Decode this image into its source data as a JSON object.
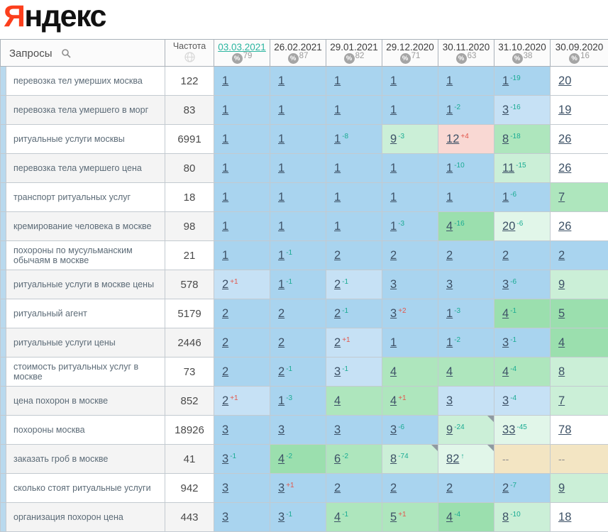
{
  "logo": {
    "red": "Я",
    "rest": "ндекс"
  },
  "colors": {
    "yandex_red": "#fc3f1d",
    "active_date_teal": "#2bb5a0",
    "change_up_teal": "#1aab93",
    "change_down_red": "#e2574c",
    "left_strip_blue": "#b9d9ee",
    "cell_palette": {
      "b": "#a9d4ef",
      "bl": "#c6e1f5",
      "g1": "#9bdfae",
      "g2": "#aee6bd",
      "g3": "#cbefd7",
      "g4": "#e1f6e9",
      "pk": "#f9d8d3",
      "tn": "#f3e5c3",
      "w": "#ffffff"
    }
  },
  "table": {
    "queries_header": "Запросы",
    "frequency_header": "Частота",
    "dates": [
      {
        "label": "03.03.2021",
        "coverage": "79",
        "active": true
      },
      {
        "label": "26.02.2021",
        "coverage": "87",
        "active": false
      },
      {
        "label": "29.01.2021",
        "coverage": "82",
        "active": false
      },
      {
        "label": "29.12.2020",
        "coverage": "71",
        "active": false
      },
      {
        "label": "30.11.2020",
        "coverage": "63",
        "active": false
      },
      {
        "label": "31.10.2020",
        "coverage": "38",
        "active": false
      },
      {
        "label": "30.09.2020",
        "coverage": "16",
        "active": false
      }
    ],
    "rows": [
      {
        "query": "перевозка тел умерших москва",
        "frequency": "122",
        "cells": [
          {
            "v": "1",
            "c": "",
            "bg": "b"
          },
          {
            "v": "1",
            "c": "",
            "bg": "b"
          },
          {
            "v": "1",
            "c": "",
            "bg": "b"
          },
          {
            "v": "1",
            "c": "",
            "bg": "b"
          },
          {
            "v": "1",
            "c": "",
            "bg": "b"
          },
          {
            "v": "1",
            "c": "-19",
            "bg": "b"
          },
          {
            "v": "20",
            "c": "",
            "bg": "w"
          }
        ]
      },
      {
        "query": "перевозка тела умершего в морг",
        "frequency": "83",
        "cells": [
          {
            "v": "1",
            "c": "",
            "bg": "b"
          },
          {
            "v": "1",
            "c": "",
            "bg": "b"
          },
          {
            "v": "1",
            "c": "",
            "bg": "b"
          },
          {
            "v": "1",
            "c": "",
            "bg": "b"
          },
          {
            "v": "1",
            "c": "-2",
            "bg": "b"
          },
          {
            "v": "3",
            "c": "-16",
            "bg": "bl"
          },
          {
            "v": "19",
            "c": "",
            "bg": "w"
          }
        ]
      },
      {
        "query": "ритуальные услуги москвы",
        "frequency": "6991",
        "cells": [
          {
            "v": "1",
            "c": "",
            "bg": "b"
          },
          {
            "v": "1",
            "c": "",
            "bg": "b"
          },
          {
            "v": "1",
            "c": "-8",
            "bg": "b"
          },
          {
            "v": "9",
            "c": "-3",
            "bg": "g3"
          },
          {
            "v": "12",
            "c": "+4",
            "bg": "pk"
          },
          {
            "v": "8",
            "c": "-18",
            "bg": "g2"
          },
          {
            "v": "26",
            "c": "",
            "bg": "w"
          }
        ]
      },
      {
        "query": "перевозка тела умершего цена",
        "frequency": "80",
        "cells": [
          {
            "v": "1",
            "c": "",
            "bg": "b"
          },
          {
            "v": "1",
            "c": "",
            "bg": "b"
          },
          {
            "v": "1",
            "c": "",
            "bg": "b"
          },
          {
            "v": "1",
            "c": "",
            "bg": "b"
          },
          {
            "v": "1",
            "c": "-10",
            "bg": "b"
          },
          {
            "v": "11",
            "c": "-15",
            "bg": "g3"
          },
          {
            "v": "26",
            "c": "",
            "bg": "w"
          }
        ]
      },
      {
        "query": "транспорт ритуальных услуг",
        "frequency": "18",
        "cells": [
          {
            "v": "1",
            "c": "",
            "bg": "b"
          },
          {
            "v": "1",
            "c": "",
            "bg": "b"
          },
          {
            "v": "1",
            "c": "",
            "bg": "b"
          },
          {
            "v": "1",
            "c": "",
            "bg": "b"
          },
          {
            "v": "1",
            "c": "",
            "bg": "b"
          },
          {
            "v": "1",
            "c": "-6",
            "bg": "b"
          },
          {
            "v": "7",
            "c": "",
            "bg": "g2"
          }
        ]
      },
      {
        "query": "кремирование человека в москве",
        "frequency": "98",
        "cells": [
          {
            "v": "1",
            "c": "",
            "bg": "b"
          },
          {
            "v": "1",
            "c": "",
            "bg": "b"
          },
          {
            "v": "1",
            "c": "",
            "bg": "b"
          },
          {
            "v": "1",
            "c": "-3",
            "bg": "b"
          },
          {
            "v": "4",
            "c": "-16",
            "bg": "g1"
          },
          {
            "v": "20",
            "c": "-6",
            "bg": "g4"
          },
          {
            "v": "26",
            "c": "",
            "bg": "w"
          }
        ]
      },
      {
        "query": "похороны по мусульманским обычаям в москве",
        "frequency": "21",
        "cells": [
          {
            "v": "1",
            "c": "",
            "bg": "b"
          },
          {
            "v": "1",
            "c": "-1",
            "bg": "b"
          },
          {
            "v": "2",
            "c": "",
            "bg": "b"
          },
          {
            "v": "2",
            "c": "",
            "bg": "b"
          },
          {
            "v": "2",
            "c": "",
            "bg": "b"
          },
          {
            "v": "2",
            "c": "",
            "bg": "b"
          },
          {
            "v": "2",
            "c": "",
            "bg": "b"
          }
        ]
      },
      {
        "query": "ритуальные услуги в москве цены",
        "frequency": "578",
        "cells": [
          {
            "v": "2",
            "c": "+1",
            "bg": "bl"
          },
          {
            "v": "1",
            "c": "-1",
            "bg": "b"
          },
          {
            "v": "2",
            "c": "-1",
            "bg": "bl"
          },
          {
            "v": "3",
            "c": "",
            "bg": "b"
          },
          {
            "v": "3",
            "c": "",
            "bg": "b"
          },
          {
            "v": "3",
            "c": "-6",
            "bg": "b"
          },
          {
            "v": "9",
            "c": "",
            "bg": "g3"
          }
        ]
      },
      {
        "query": "ритуальный агент",
        "frequency": "5179",
        "cells": [
          {
            "v": "2",
            "c": "",
            "bg": "b"
          },
          {
            "v": "2",
            "c": "",
            "bg": "b"
          },
          {
            "v": "2",
            "c": "-1",
            "bg": "b"
          },
          {
            "v": "3",
            "c": "+2",
            "bg": "b"
          },
          {
            "v": "1",
            "c": "-3",
            "bg": "b"
          },
          {
            "v": "4",
            "c": "-1",
            "bg": "g1"
          },
          {
            "v": "5",
            "c": "",
            "bg": "g1"
          }
        ]
      },
      {
        "query": "ритуальные услуги цены",
        "frequency": "2446",
        "cells": [
          {
            "v": "2",
            "c": "",
            "bg": "b"
          },
          {
            "v": "2",
            "c": "",
            "bg": "b"
          },
          {
            "v": "2",
            "c": "+1",
            "bg": "bl"
          },
          {
            "v": "1",
            "c": "",
            "bg": "b"
          },
          {
            "v": "1",
            "c": "-2",
            "bg": "b"
          },
          {
            "v": "3",
            "c": "-1",
            "bg": "b"
          },
          {
            "v": "4",
            "c": "",
            "bg": "g1"
          }
        ]
      },
      {
        "query": "стоимость ритуальных услуг в москве",
        "frequency": "73",
        "cells": [
          {
            "v": "2",
            "c": "",
            "bg": "b"
          },
          {
            "v": "2",
            "c": "-1",
            "bg": "b"
          },
          {
            "v": "3",
            "c": "-1",
            "bg": "bl"
          },
          {
            "v": "4",
            "c": "",
            "bg": "g2"
          },
          {
            "v": "4",
            "c": "",
            "bg": "g2"
          },
          {
            "v": "4",
            "c": "-4",
            "bg": "g2"
          },
          {
            "v": "8",
            "c": "",
            "bg": "g3"
          }
        ]
      },
      {
        "query": "цена похорон в москве",
        "frequency": "852",
        "cells": [
          {
            "v": "2",
            "c": "+1",
            "bg": "bl"
          },
          {
            "v": "1",
            "c": "-3",
            "bg": "b"
          },
          {
            "v": "4",
            "c": "",
            "bg": "g2"
          },
          {
            "v": "4",
            "c": "+1",
            "bg": "g2"
          },
          {
            "v": "3",
            "c": "",
            "bg": "bl"
          },
          {
            "v": "3",
            "c": "-4",
            "bg": "bl"
          },
          {
            "v": "7",
            "c": "",
            "bg": "g3"
          }
        ]
      },
      {
        "query": "похороны москва",
        "frequency": "18926",
        "cells": [
          {
            "v": "3",
            "c": "",
            "bg": "b"
          },
          {
            "v": "3",
            "c": "",
            "bg": "b"
          },
          {
            "v": "3",
            "c": "",
            "bg": "b"
          },
          {
            "v": "3",
            "c": "-6",
            "bg": "b"
          },
          {
            "v": "9",
            "c": "-24",
            "bg": "g3",
            "corner": true
          },
          {
            "v": "33",
            "c": "-45",
            "bg": "g4"
          },
          {
            "v": "78",
            "c": "",
            "bg": "w"
          }
        ]
      },
      {
        "query": "заказать гроб в москве",
        "frequency": "41",
        "cells": [
          {
            "v": "3",
            "c": "-1",
            "bg": "b"
          },
          {
            "v": "4",
            "c": "-2",
            "bg": "g1"
          },
          {
            "v": "6",
            "c": "-2",
            "bg": "g2"
          },
          {
            "v": "8",
            "c": "-74",
            "bg": "g3",
            "corner": true
          },
          {
            "v": "82",
            "c": "↑",
            "bg": "g4",
            "corner": true
          },
          {
            "v": "--",
            "c": "",
            "bg": "tn"
          },
          {
            "v": "--",
            "c": "",
            "bg": "tn"
          }
        ]
      },
      {
        "query": "сколько стоят ритуальные услуги",
        "frequency": "942",
        "cells": [
          {
            "v": "3",
            "c": "",
            "bg": "b"
          },
          {
            "v": "3",
            "c": "+1",
            "bg": "b"
          },
          {
            "v": "2",
            "c": "",
            "bg": "b"
          },
          {
            "v": "2",
            "c": "",
            "bg": "b"
          },
          {
            "v": "2",
            "c": "",
            "bg": "b"
          },
          {
            "v": "2",
            "c": "-7",
            "bg": "b"
          },
          {
            "v": "9",
            "c": "",
            "bg": "g3"
          }
        ]
      },
      {
        "query": "организация похорон цена",
        "frequency": "443",
        "cells": [
          {
            "v": "3",
            "c": "",
            "bg": "b"
          },
          {
            "v": "3",
            "c": "-1",
            "bg": "b"
          },
          {
            "v": "4",
            "c": "-1",
            "bg": "g2"
          },
          {
            "v": "5",
            "c": "+1",
            "bg": "g2"
          },
          {
            "v": "4",
            "c": "-4",
            "bg": "g1"
          },
          {
            "v": "8",
            "c": "-10",
            "bg": "g3"
          },
          {
            "v": "18",
            "c": "",
            "bg": "w"
          }
        ]
      }
    ]
  }
}
